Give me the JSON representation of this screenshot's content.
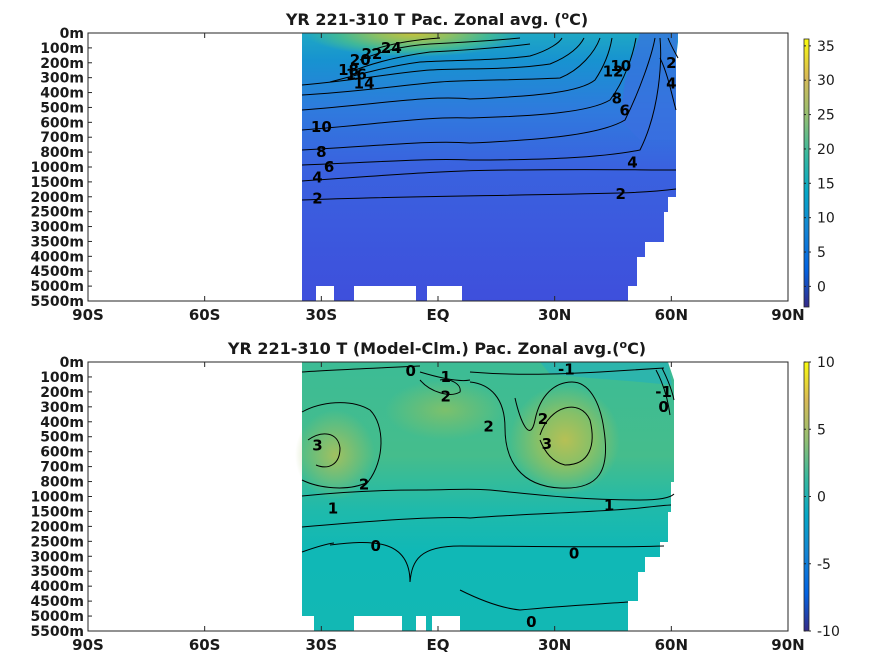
{
  "chart_data": [
    {
      "type": "heatmap",
      "title": "YR 221-310 T Pac. Zonal avg. (",
      "title_sup": "o",
      "title_suffix": "C)",
      "xlabel": "",
      "ylabel": "",
      "x_ticks": [
        "90S",
        "60S",
        "30S",
        "EQ",
        "30N",
        "60N",
        "90N"
      ],
      "y_ticks": [
        "0m",
        "100m",
        "200m",
        "300m",
        "400m",
        "500m",
        "600m",
        "700m",
        "800m",
        "1000m",
        "1500m",
        "2000m",
        "2500m",
        "3000m",
        "3500m",
        "4000m",
        "4500m",
        "5000m",
        "5500m"
      ],
      "data_extent_lat": [
        -35,
        62
      ],
      "colorbar": {
        "range": [
          -3,
          36
        ],
        "ticks": [
          0,
          5,
          10,
          15,
          20,
          25,
          30,
          35
        ]
      },
      "colormap": "parula",
      "contour_labels": [
        {
          "text": "24",
          "lat": -12,
          "depth_index": 1.0
        },
        {
          "text": "22",
          "lat": -17,
          "depth_index": 1.4
        },
        {
          "text": "20",
          "lat": -20,
          "depth_index": 1.8
        },
        {
          "text": "18",
          "lat": -23,
          "depth_index": 2.5
        },
        {
          "text": "16",
          "lat": -21,
          "depth_index": 2.8
        },
        {
          "text": "14",
          "lat": -19,
          "depth_index": 3.4
        },
        {
          "text": "12",
          "lat": 45,
          "depth_index": 2.6
        },
        {
          "text": "10",
          "lat": 47,
          "depth_index": 2.2
        },
        {
          "text": "8",
          "lat": 46,
          "depth_index": 4.4
        },
        {
          "text": "6",
          "lat": 48,
          "depth_index": 5.2
        },
        {
          "text": "2",
          "lat": 60,
          "depth_index": 2.0
        },
        {
          "text": "4",
          "lat": 60,
          "depth_index": 3.4
        },
        {
          "text": "10",
          "lat": -30,
          "depth_index": 6.3
        },
        {
          "text": "8",
          "lat": -30,
          "depth_index": 8.0
        },
        {
          "text": "6",
          "lat": -28,
          "depth_index": 9.0
        },
        {
          "text": "4",
          "lat": -31,
          "depth_index": 9.7
        },
        {
          "text": "2",
          "lat": -31,
          "depth_index": 11.1
        },
        {
          "text": "4",
          "lat": 50,
          "depth_index": 8.7
        },
        {
          "text": "2",
          "lat": 47,
          "depth_index": 10.8
        }
      ]
    },
    {
      "type": "heatmap",
      "title": "YR 221-310 T (Model-Clm.) Pac. Zonal avg.(",
      "title_sup": "o",
      "title_suffix": "C)",
      "xlabel": "",
      "ylabel": "",
      "x_ticks": [
        "90S",
        "60S",
        "30S",
        "EQ",
        "30N",
        "60N",
        "90N"
      ],
      "y_ticks": [
        "0m",
        "100m",
        "200m",
        "300m",
        "400m",
        "500m",
        "600m",
        "700m",
        "800m",
        "1000m",
        "1500m",
        "2000m",
        "2500m",
        "3000m",
        "3500m",
        "4000m",
        "4500m",
        "5000m",
        "5500m"
      ],
      "data_extent_lat": [
        -35,
        61
      ],
      "colorbar": {
        "range": [
          -10,
          10
        ],
        "ticks": [
          -10,
          -5,
          0,
          5,
          10
        ]
      },
      "colormap": "parula",
      "contour_labels": [
        {
          "text": "0",
          "lat": -7,
          "depth_index": 0.6
        },
        {
          "text": "1",
          "lat": 2,
          "depth_index": 1.0
        },
        {
          "text": "-1",
          "lat": 33,
          "depth_index": 0.5
        },
        {
          "text": "2",
          "lat": 2,
          "depth_index": 2.3
        },
        {
          "text": "-1",
          "lat": 58,
          "depth_index": 2.0
        },
        {
          "text": "0",
          "lat": 58,
          "depth_index": 3.0
        },
        {
          "text": "2",
          "lat": 13,
          "depth_index": 4.3
        },
        {
          "text": "2",
          "lat": 27,
          "depth_index": 3.8
        },
        {
          "text": "3",
          "lat": 28,
          "depth_index": 5.5
        },
        {
          "text": "3",
          "lat": -31,
          "depth_index": 5.6
        },
        {
          "text": "2",
          "lat": -19,
          "depth_index": 8.2
        },
        {
          "text": "1",
          "lat": -27,
          "depth_index": 9.8
        },
        {
          "text": "1",
          "lat": 44,
          "depth_index": 9.6
        },
        {
          "text": "0",
          "lat": -16,
          "depth_index": 12.3
        },
        {
          "text": "0",
          "lat": 35,
          "depth_index": 12.8
        },
        {
          "text": "0",
          "lat": 24,
          "depth_index": 17.4
        }
      ]
    }
  ]
}
